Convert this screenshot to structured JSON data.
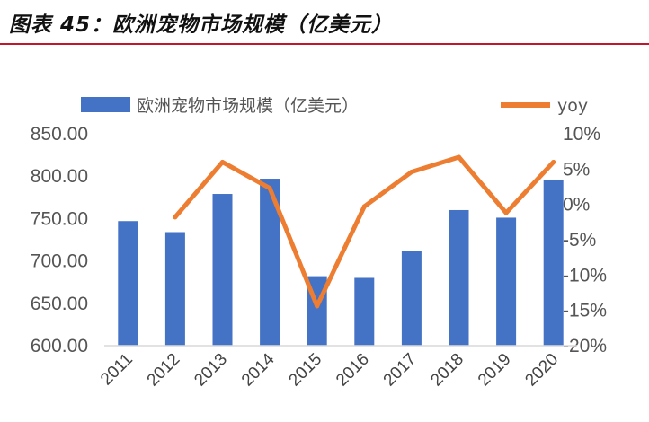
{
  "figure_title": "图表 45：欧洲宠物市场规模（亿美元）",
  "colors": {
    "bar": "#4472c4",
    "line": "#ed7d31",
    "title_rule": "#c0172e"
  },
  "chart_data": {
    "type": "bar",
    "categories": [
      "2011",
      "2012",
      "2013",
      "2014",
      "2015",
      "2016",
      "2017",
      "2018",
      "2019",
      "2020"
    ],
    "series": [
      {
        "name": "欧洲宠物市场规模（亿美元）",
        "type": "bar",
        "axis": "left",
        "values": [
          747,
          734,
          779,
          797,
          682,
          680,
          712,
          760,
          751,
          796
        ]
      },
      {
        "name": "yoy",
        "type": "line",
        "axis": "right",
        "values": [
          null,
          -1.8,
          6.0,
          2.3,
          -14.4,
          -0.3,
          4.6,
          6.7,
          -1.2,
          6.0
        ]
      }
    ],
    "y_left": {
      "ylim": [
        600,
        850
      ],
      "ticks": [
        "600.00",
        "650.00",
        "700.00",
        "750.00",
        "800.00",
        "850.00"
      ]
    },
    "y_right": {
      "ylim": [
        -20,
        10
      ],
      "ticks": [
        "-20%",
        "-15%",
        "-10%",
        "-5%",
        "0%",
        "5%",
        "10%"
      ]
    },
    "legend_placement": "top",
    "grid": false
  }
}
